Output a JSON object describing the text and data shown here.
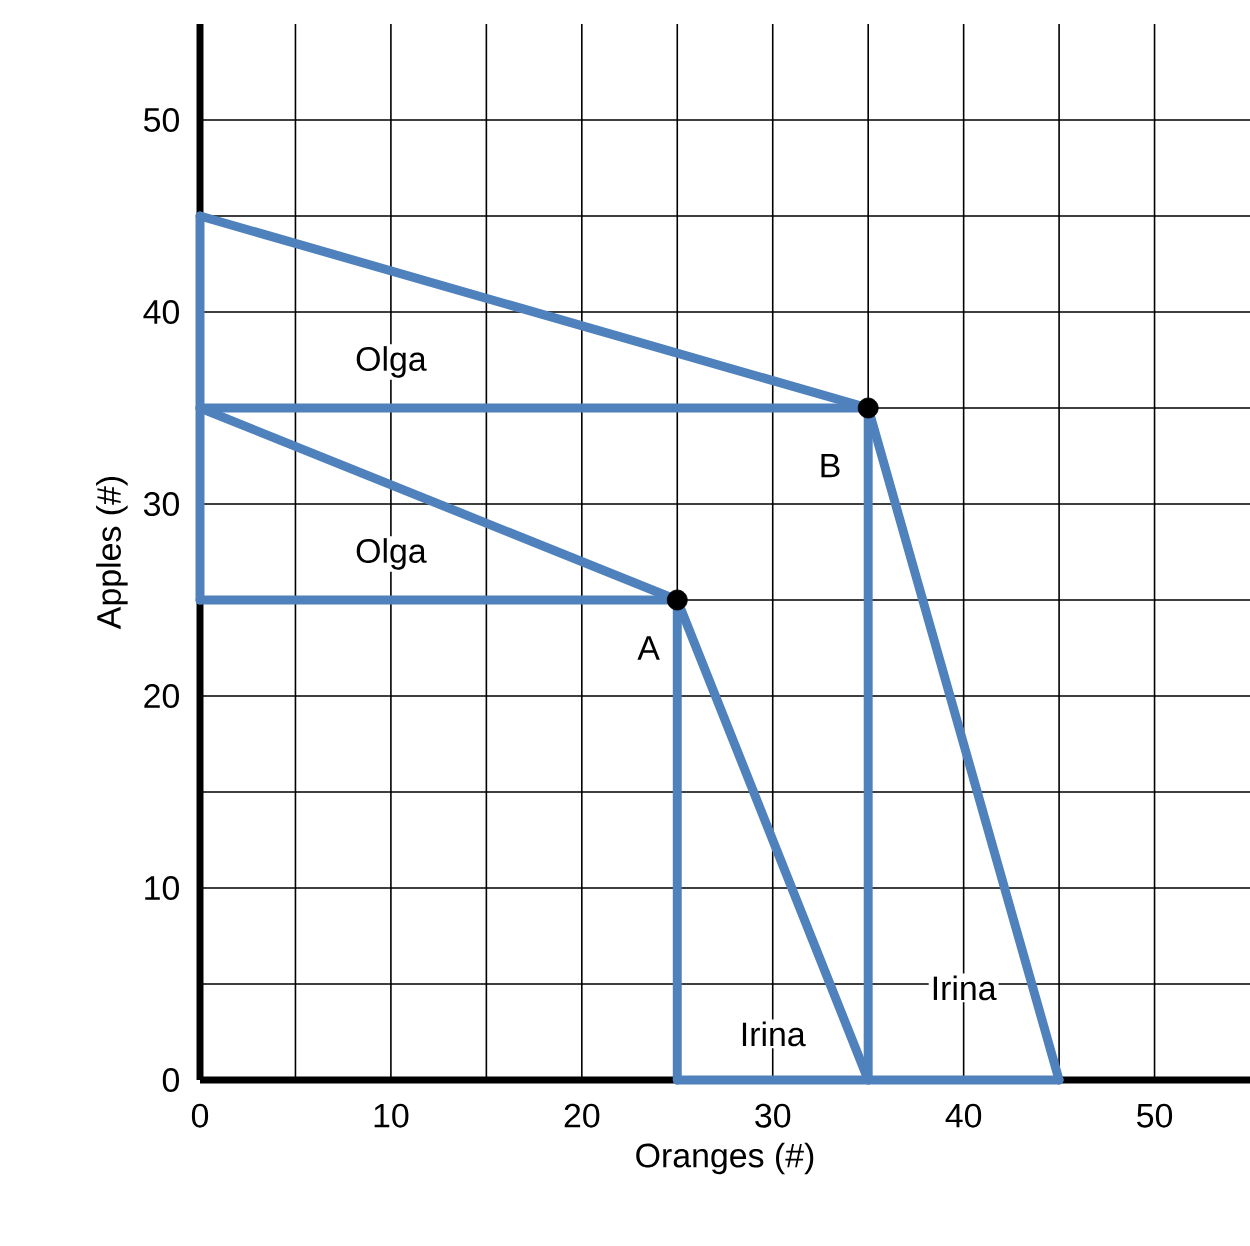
{
  "chart_data": {
    "type": "line",
    "xlabel": "Oranges (#)",
    "ylabel": "Apples (#)",
    "xlim": [
      0,
      55
    ],
    "ylim": [
      0,
      55
    ],
    "xticks": [
      0,
      {
        "value": 5,
        "label": null
      },
      10,
      {
        "value": 15,
        "label": null
      },
      20,
      {
        "value": 25,
        "label": null
      },
      30,
      {
        "value": 35,
        "label": null
      },
      40,
      {
        "value": 45,
        "label": null
      },
      50
    ],
    "yticks": [
      0,
      {
        "value": 5,
        "label": null
      },
      10,
      {
        "value": 15,
        "label": null
      },
      20,
      {
        "value": 25,
        "label": null
      },
      30,
      {
        "value": 35,
        "label": null
      },
      40,
      {
        "value": 45,
        "label": null
      },
      50
    ],
    "grid": true,
    "line_style": "solid",
    "marker": "none",
    "series": [
      {
        "color": "#4f81bd",
        "x": [
          0,
          35,
          45
        ],
        "values": [
          45,
          35,
          0
        ]
      },
      {
        "color": "#4f81bd",
        "x": [
          0,
          25,
          35
        ],
        "values": [
          35,
          25,
          0
        ]
      },
      {
        "color": "#4f81bd",
        "x": [
          0,
          35
        ],
        "values": [
          35,
          35
        ]
      },
      {
        "color": "#4f81bd",
        "x": [
          0,
          25
        ],
        "values": [
          25,
          25
        ]
      },
      {
        "color": "#4f81bd",
        "x": [
          25,
          35,
          45
        ],
        "values": [
          0,
          0,
          0
        ]
      },
      {
        "color": "#4f81bd",
        "x": [
          0,
          0
        ],
        "values": [
          25,
          45
        ]
      },
      {
        "color": "#4f81bd",
        "x": [
          25,
          25
        ],
        "values": [
          0,
          25
        ]
      },
      {
        "color": "#4f81bd",
        "x": [
          35,
          35
        ],
        "values": [
          0,
          35
        ]
      },
      {
        "type": "scatter",
        "color": "#000000",
        "marker": "circle",
        "x": [
          25,
          35
        ],
        "values": [
          25,
          35
        ]
      }
    ],
    "annotations": [
      "Olga",
      "Olga",
      "A",
      "B",
      "Irina",
      "Irina"
    ]
  }
}
